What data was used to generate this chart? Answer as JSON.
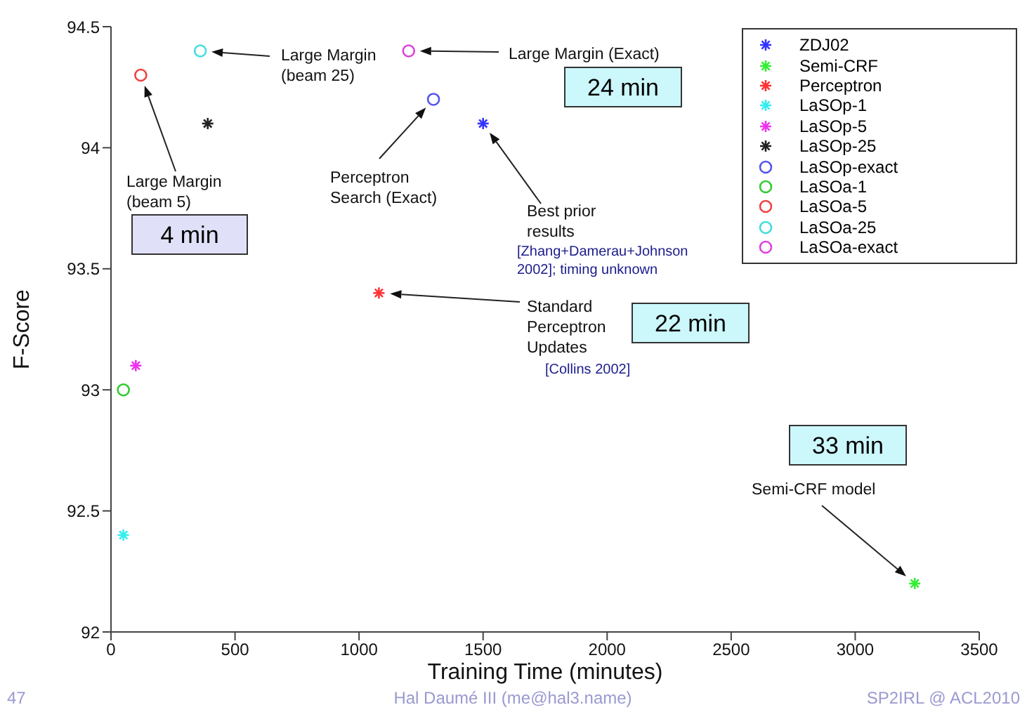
{
  "chart_data": {
    "type": "scatter",
    "xlabel": "Training Time (minutes)",
    "ylabel": "F-Score",
    "xlim": [
      0,
      3500
    ],
    "xticks": [
      0,
      500,
      1000,
      1500,
      2000,
      2500,
      3000,
      3500
    ],
    "ylim": [
      92,
      94.5
    ],
    "yticks": [
      92,
      92.5,
      93,
      93.5,
      94,
      94.5
    ],
    "grid": false,
    "legend": "top right",
    "series": [
      {
        "name": "ZDJ02",
        "color": "#3333ff",
        "marker": "cross",
        "x": [
          1500
        ],
        "values": [
          94.1
        ]
      },
      {
        "name": "Semi-CRF",
        "color": "#33ee33",
        "marker": "cross",
        "x": [
          3240
        ],
        "values": [
          92.2
        ]
      },
      {
        "name": "Perceptron",
        "color": "#ff3333",
        "marker": "cross",
        "x": [
          1080
        ],
        "values": [
          93.4
        ]
      },
      {
        "name": "LaSOp-1",
        "color": "#33eeee",
        "marker": "cross",
        "x": [
          50
        ],
        "values": [
          92.4
        ]
      },
      {
        "name": "LaSOp-5",
        "color": "#ee33ee",
        "marker": "cross",
        "x": [
          100
        ],
        "values": [
          93.1
        ]
      },
      {
        "name": "LaSOp-25",
        "color": "#222222",
        "marker": "cross",
        "x": [
          390
        ],
        "values": [
          94.1
        ]
      },
      {
        "name": "LaSOp-exact",
        "color": "#5555ee",
        "marker": "circle",
        "x": [
          1300
        ],
        "values": [
          94.2
        ]
      },
      {
        "name": "LaSOa-1",
        "color": "#33cc33",
        "marker": "circle",
        "x": [
          50
        ],
        "values": [
          93
        ]
      },
      {
        "name": "LaSOa-5",
        "color": "#ee4444",
        "marker": "circle",
        "x": [
          120
        ],
        "values": [
          94.3
        ]
      },
      {
        "name": "LaSOa-25",
        "color": "#44dddd",
        "marker": "circle",
        "x": [
          360
        ],
        "values": [
          94.4
        ]
      },
      {
        "name": "LaSOa-exact",
        "color": "#dd44dd",
        "marker": "circle",
        "x": [
          1200
        ],
        "values": [
          94.4
        ]
      }
    ],
    "annotations": [
      "Large Margin (beam 25)",
      "Large Margin (Exact)",
      "Large Margin (beam 5)",
      "Perceptron Search (Exact)",
      "Best prior results",
      "[Zhang+Damerau+Johnson 2002]; timing unknown",
      "Standard Perceptron Updates",
      "[Collins 2002]",
      "Semi-CRF model",
      "4 min",
      "24 min",
      "22 min",
      "33 min",
      "47",
      "Hal Daumé III (me@hal3.name)",
      "SP2IRL @ ACL2010"
    ]
  }
}
